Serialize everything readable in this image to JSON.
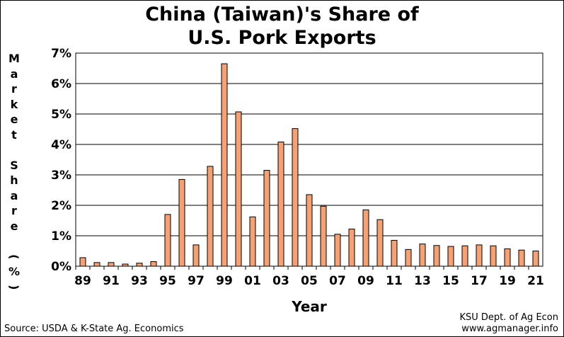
{
  "title_line1": "China (Taiwan)'s Share of",
  "title_line2": "U.S. Pork Exports",
  "ylabel_chars": [
    "M",
    "a",
    "r",
    "k",
    "e",
    "t",
    " ",
    "S",
    "h",
    "a",
    "r",
    "e",
    " ",
    "(",
    "%",
    ")"
  ],
  "source": "Source:  USDA & K-State Ag. Economics",
  "credit_line1": "KSU Dept. of Ag Econ",
  "credit_line2": "www.agmanager.info",
  "colors": {
    "bar_fill": "#F7A072",
    "bar_stroke": "#000000"
  },
  "chart_data": {
    "type": "bar",
    "title": "China (Taiwan)'s Share of U.S. Pork Exports",
    "xlabel": "Year",
    "ylabel": "Market Share (%)",
    "ylim": [
      0,
      7
    ],
    "yticks": [
      "0%",
      "1%",
      "2%",
      "3%",
      "4%",
      "5%",
      "6%",
      "7%"
    ],
    "grid": true,
    "categories": [
      "89",
      "90",
      "91",
      "92",
      "93",
      "94",
      "95",
      "96",
      "97",
      "98",
      "99",
      "00",
      "01",
      "02",
      "03",
      "04",
      "05",
      "06",
      "07",
      "08",
      "09",
      "10",
      "11",
      "12",
      "13",
      "14",
      "15",
      "16",
      "17",
      "18",
      "19",
      "20",
      "21"
    ],
    "xtick_labels": [
      "89",
      "",
      "91",
      "",
      "93",
      "",
      "95",
      "",
      "97",
      "",
      "99",
      "",
      "01",
      "",
      "03",
      "",
      "05",
      "",
      "07",
      "",
      "09",
      "",
      "11",
      "",
      "13",
      "",
      "15",
      "",
      "17",
      "",
      "19",
      "",
      "21"
    ],
    "values": [
      0.28,
      0.12,
      0.12,
      0.07,
      0.1,
      0.15,
      1.7,
      2.85,
      0.7,
      3.28,
      6.65,
      5.07,
      1.62,
      3.15,
      4.08,
      4.52,
      2.35,
      1.97,
      1.05,
      1.22,
      1.85,
      1.53,
      0.85,
      0.55,
      0.73,
      0.68,
      0.65,
      0.67,
      0.7,
      0.67,
      0.57,
      0.53,
      0.5
    ]
  }
}
